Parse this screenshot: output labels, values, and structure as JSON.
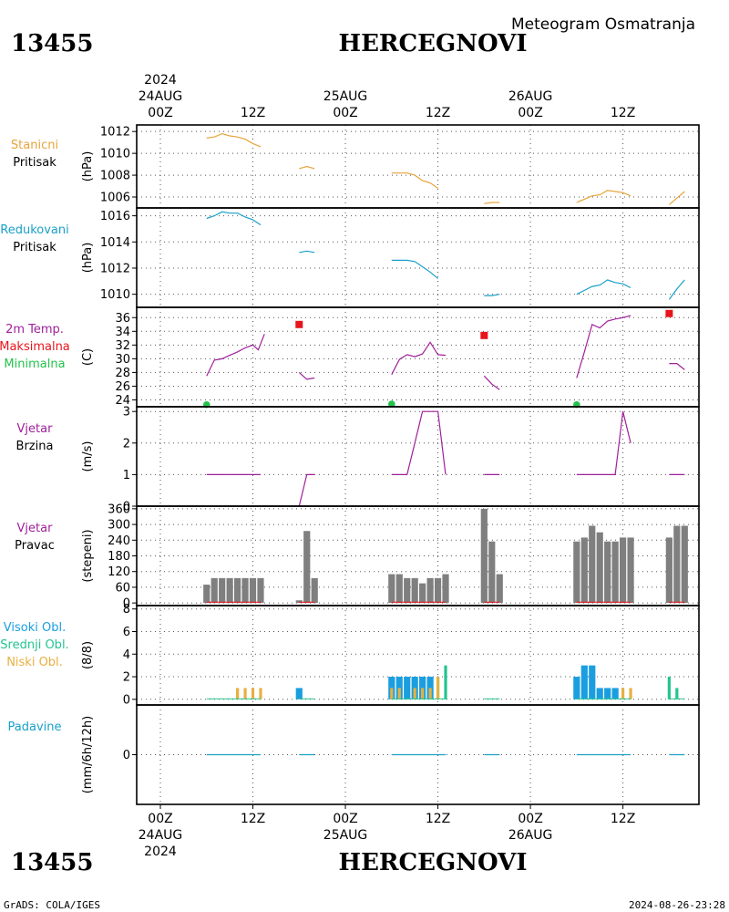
{
  "header": {
    "station_id": "13455",
    "station_name": "HERCEGNOVI",
    "product": "Meteogram Osmatranja"
  },
  "footer": {
    "credit": "GrADS: COLA/IGES",
    "timestamp": "2024-08-26-23:28"
  },
  "colors": {
    "pressure": "#e8a33a",
    "reduced_pressure": "#1aa0c8",
    "temperature": "#a0209a",
    "max_temp": "#e8141c",
    "min_temp": "#23c24b",
    "wind": "#a0209a",
    "bars": "#7f7f7f",
    "dir_marks": "#e8141c",
    "high_cloud": "#1a9ee0",
    "mid_cloud": "#23c490",
    "low_cloud": "#e8b040",
    "precip": "#1aa0c8"
  },
  "time_axis": {
    "top_year": "2024",
    "major_ticks": [
      {
        "hour": 0,
        "time": "00Z",
        "date": "24AUG"
      },
      {
        "hour": 24,
        "time": "00Z",
        "date": "25AUG"
      },
      {
        "hour": 48,
        "time": "00Z",
        "date": "26AUG"
      }
    ],
    "minor_ticks": [
      {
        "hour": 12,
        "time": "12Z"
      },
      {
        "hour": 36,
        "time": "12Z"
      },
      {
        "hour": 60,
        "time": "12Z"
      }
    ]
  },
  "chart_data": [
    {
      "type": "line",
      "id": "stanicni",
      "labels": [
        "Stanicni",
        "Pritisak"
      ],
      "ylabel": "(hPa)",
      "yticks": [
        1006,
        1008,
        1010,
        1012
      ],
      "ylim": [
        1005,
        1012.6
      ],
      "grid": true,
      "segments": [
        [
          [
            6,
            1011.4
          ],
          [
            7,
            1011.5
          ],
          [
            8,
            1011.8
          ],
          [
            9,
            1011.6
          ],
          [
            10,
            1011.5
          ],
          [
            11,
            1011.3
          ],
          [
            12,
            1010.9
          ],
          [
            13,
            1010.6
          ]
        ],
        [
          [
            18,
            1008.6
          ],
          [
            19,
            1008.8
          ],
          [
            20,
            1008.6
          ]
        ],
        [
          [
            30,
            1008.2
          ],
          [
            31,
            1008.2
          ],
          [
            32,
            1008.2
          ],
          [
            33,
            1008.0
          ],
          [
            34,
            1007.5
          ],
          [
            35,
            1007.3
          ],
          [
            36,
            1006.8
          ]
        ],
        [
          [
            42,
            1005.4
          ],
          [
            43,
            1005.5
          ],
          [
            44,
            1005.5
          ]
        ],
        [
          [
            54,
            1005.5
          ],
          [
            55,
            1005.8
          ],
          [
            56,
            1006.1
          ],
          [
            57,
            1006.2
          ],
          [
            58,
            1006.6
          ],
          [
            59,
            1006.5
          ],
          [
            60,
            1006.4
          ],
          [
            61,
            1006.1
          ]
        ],
        [
          [
            66,
            1005.3
          ],
          [
            67,
            1005.9
          ],
          [
            68,
            1006.5
          ]
        ]
      ]
    },
    {
      "type": "line",
      "id": "redukovani",
      "labels": [
        "Redukovani",
        "Pritisak"
      ],
      "ylabel": "(hPa)",
      "yticks": [
        1010,
        1012,
        1014,
        1016
      ],
      "ylim": [
        1009,
        1016.6
      ],
      "grid": true,
      "segments": [
        [
          [
            6,
            1015.8
          ],
          [
            7,
            1016.0
          ],
          [
            8,
            1016.3
          ],
          [
            9,
            1016.2
          ],
          [
            10,
            1016.2
          ],
          [
            11,
            1015.9
          ],
          [
            12,
            1015.7
          ],
          [
            13,
            1015.3
          ]
        ],
        [
          [
            18,
            1013.2
          ],
          [
            19,
            1013.3
          ],
          [
            20,
            1013.2
          ]
        ],
        [
          [
            30,
            1012.6
          ],
          [
            31,
            1012.6
          ],
          [
            32,
            1012.6
          ],
          [
            33,
            1012.5
          ],
          [
            34,
            1012.1
          ],
          [
            35,
            1011.7
          ],
          [
            36,
            1011.2
          ]
        ],
        [
          [
            42,
            1009.9
          ],
          [
            43,
            1009.9
          ],
          [
            44,
            1010.0
          ]
        ],
        [
          [
            54,
            1010.0
          ],
          [
            55,
            1010.3
          ],
          [
            56,
            1010.6
          ],
          [
            57,
            1010.7
          ],
          [
            58,
            1011.1
          ],
          [
            59,
            1010.9
          ],
          [
            60,
            1010.8
          ],
          [
            61,
            1010.5
          ]
        ],
        [
          [
            66,
            1009.6
          ],
          [
            67,
            1010.4
          ],
          [
            68,
            1011.1
          ]
        ]
      ]
    },
    {
      "type": "line",
      "id": "temperatura",
      "labels": [
        "2m Temp.",
        "Maksimalna",
        "Minimalna"
      ],
      "ylabel": "(C)",
      "yticks": [
        24,
        26,
        28,
        30,
        32,
        34,
        36
      ],
      "ylim": [
        23,
        37.5
      ],
      "grid": true,
      "segments": [
        [
          [
            6,
            27.5
          ],
          [
            7,
            29.8
          ],
          [
            8,
            30.0
          ],
          [
            9,
            30.5
          ],
          [
            10,
            31.0
          ],
          [
            11,
            31.6
          ],
          [
            12,
            32.0
          ],
          [
            12.7,
            31.3
          ],
          [
            13.5,
            33.6
          ]
        ],
        [
          [
            18,
            28.0
          ],
          [
            19,
            27.0
          ],
          [
            20,
            27.2
          ]
        ],
        [
          [
            30,
            27.7
          ],
          [
            31,
            29.9
          ],
          [
            32,
            30.6
          ],
          [
            33,
            30.3
          ],
          [
            34,
            30.7
          ],
          [
            35,
            32.4
          ],
          [
            36,
            30.6
          ],
          [
            37,
            30.5
          ]
        ],
        [
          [
            42,
            27.5
          ],
          [
            43,
            26.3
          ],
          [
            44,
            25.5
          ]
        ],
        [
          [
            54,
            27.2
          ],
          [
            55,
            31.0
          ],
          [
            56,
            35.0
          ],
          [
            57,
            34.5
          ],
          [
            58,
            35.5
          ],
          [
            59,
            35.8
          ],
          [
            60,
            36.0
          ],
          [
            61,
            36.3
          ]
        ],
        [
          [
            66,
            29.3
          ],
          [
            67,
            29.3
          ],
          [
            68,
            28.4
          ]
        ]
      ],
      "max_points": [
        [
          18,
          35.0
        ],
        [
          42,
          33.4
        ],
        [
          66,
          36.6
        ]
      ],
      "min_points": [
        [
          6,
          23.3
        ],
        [
          30,
          23.4
        ],
        [
          54,
          23.3
        ]
      ]
    },
    {
      "type": "line",
      "id": "vjetar_brzina",
      "labels": [
        "Vjetar",
        "Brzina"
      ],
      "ylabel": "(m/s)",
      "yticks": [
        0,
        1,
        2,
        3
      ],
      "ylim": [
        0,
        3.15
      ],
      "grid": true,
      "segments": [
        [
          [
            6,
            1
          ],
          [
            7,
            1
          ],
          [
            8,
            1
          ],
          [
            9,
            1
          ],
          [
            10,
            1
          ],
          [
            11,
            1
          ],
          [
            12,
            1
          ],
          [
            13,
            1
          ]
        ],
        [
          [
            18,
            0
          ],
          [
            19,
            1
          ],
          [
            20,
            1
          ]
        ],
        [
          [
            30,
            1
          ],
          [
            31,
            1
          ],
          [
            32,
            1
          ],
          [
            33,
            2
          ],
          [
            34,
            3
          ],
          [
            35,
            3
          ],
          [
            36,
            3
          ],
          [
            37,
            1
          ]
        ],
        [
          [
            42,
            1
          ],
          [
            43,
            1
          ],
          [
            44,
            1
          ]
        ],
        [
          [
            54,
            1
          ],
          [
            55,
            1
          ],
          [
            56,
            1
          ],
          [
            57,
            1
          ],
          [
            58,
            1
          ],
          [
            59,
            1
          ],
          [
            60,
            3
          ],
          [
            61,
            2
          ]
        ],
        [
          [
            66,
            1
          ],
          [
            67,
            1
          ],
          [
            68,
            1
          ]
        ]
      ]
    },
    {
      "type": "bar",
      "id": "vjetar_pravac",
      "labels": [
        "Vjetar",
        "Pravac"
      ],
      "ylabel": "(stepeni)",
      "yticks": [
        0,
        60,
        120,
        180,
        240,
        300,
        360
      ],
      "ylim": [
        -10,
        370
      ],
      "grid": true,
      "bars": [
        [
          6,
          70
        ],
        [
          7,
          95
        ],
        [
          8,
          95
        ],
        [
          9,
          95
        ],
        [
          10,
          95
        ],
        [
          11,
          95
        ],
        [
          12,
          95
        ],
        [
          13,
          95
        ],
        [
          18,
          10
        ],
        [
          19,
          275
        ],
        [
          20,
          95
        ],
        [
          30,
          110
        ],
        [
          31,
          110
        ],
        [
          32,
          95
        ],
        [
          33,
          95
        ],
        [
          34,
          75
        ],
        [
          35,
          95
        ],
        [
          36,
          95
        ],
        [
          37,
          110
        ],
        [
          42,
          360
        ],
        [
          43,
          235
        ],
        [
          44,
          110
        ],
        [
          54,
          235
        ],
        [
          55,
          250
        ],
        [
          56,
          295
        ],
        [
          57,
          270
        ],
        [
          58,
          235
        ],
        [
          59,
          235
        ],
        [
          60,
          250
        ],
        [
          61,
          250
        ],
        [
          66,
          250
        ],
        [
          67,
          295
        ],
        [
          68,
          295
        ]
      ]
    },
    {
      "type": "bar",
      "id": "oblaci",
      "labels": [
        "Visoki Obl.",
        "Srednji Obl.",
        "Niski Obl."
      ],
      "ylabel": "(8/8)",
      "yticks": [
        0,
        2,
        4,
        6,
        8
      ],
      "ylim": [
        -0.5,
        8.3
      ],
      "grid": true,
      "high_bars": [
        [
          18,
          1
        ],
        [
          30,
          2
        ],
        [
          31,
          2
        ],
        [
          32,
          2
        ],
        [
          33,
          2
        ],
        [
          34,
          2
        ],
        [
          35,
          2
        ],
        [
          54,
          2
        ],
        [
          55,
          3
        ],
        [
          56,
          3
        ],
        [
          57,
          1
        ],
        [
          58,
          1
        ],
        [
          59,
          1
        ]
      ],
      "mid_bars": [
        [
          33,
          1
        ],
        [
          34,
          1
        ],
        [
          35,
          1
        ],
        [
          36,
          2
        ],
        [
          37,
          3
        ],
        [
          66,
          2
        ],
        [
          67,
          1
        ]
      ],
      "low_bars": [
        [
          10,
          1
        ],
        [
          11,
          1
        ],
        [
          12,
          1
        ],
        [
          13,
          1
        ],
        [
          30,
          1
        ],
        [
          31,
          1
        ],
        [
          33,
          1
        ],
        [
          34,
          1
        ],
        [
          35,
          1
        ],
        [
          36,
          2
        ],
        [
          60,
          1
        ],
        [
          61,
          1
        ]
      ],
      "zero_segments": [
        [
          6,
          13
        ],
        [
          18,
          20
        ],
        [
          30,
          37
        ],
        [
          42,
          44
        ],
        [
          54,
          61
        ],
        [
          66,
          68
        ]
      ]
    },
    {
      "type": "line",
      "id": "padavine",
      "labels": [
        "Padavine"
      ],
      "ylabel": "(mm/6h/12h)",
      "yticks": [
        0
      ],
      "ylim": [
        -1,
        1
      ],
      "grid": true,
      "zero_segments": [
        [
          6,
          13
        ],
        [
          18,
          20
        ],
        [
          30,
          37
        ],
        [
          42,
          44
        ],
        [
          54,
          61
        ],
        [
          66,
          68
        ]
      ]
    }
  ]
}
